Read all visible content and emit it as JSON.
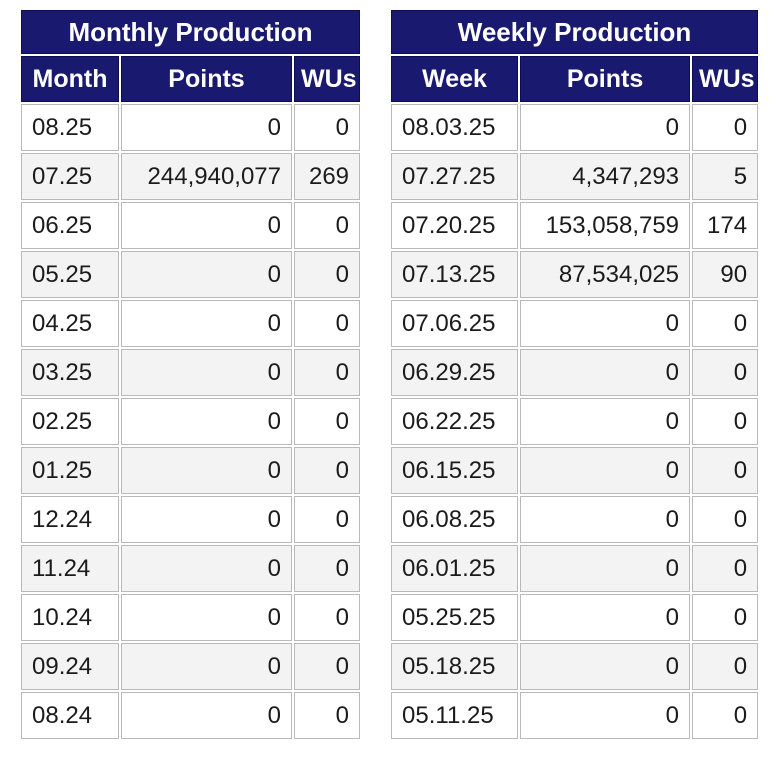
{
  "colors": {
    "page_bg": "#ffffff",
    "header_bg": "#191970",
    "header_border": "#0d0d52",
    "header_text": "#ffffff",
    "cell_border": "#b9b9b9",
    "row_odd_bg": "#ffffff",
    "row_even_bg": "#f3f3f3",
    "text": "#1b1b1b"
  },
  "monthly_table": {
    "title": "Monthly Production",
    "columns": [
      "Month",
      "Points",
      "WUs"
    ],
    "rows": [
      [
        "08.25",
        "0",
        "0"
      ],
      [
        "07.25",
        "244,940,077",
        "269"
      ],
      [
        "06.25",
        "0",
        "0"
      ],
      [
        "05.25",
        "0",
        "0"
      ],
      [
        "04.25",
        "0",
        "0"
      ],
      [
        "03.25",
        "0",
        "0"
      ],
      [
        "02.25",
        "0",
        "0"
      ],
      [
        "01.25",
        "0",
        "0"
      ],
      [
        "12.24",
        "0",
        "0"
      ],
      [
        "11.24",
        "0",
        "0"
      ],
      [
        "10.24",
        "0",
        "0"
      ],
      [
        "09.24",
        "0",
        "0"
      ],
      [
        "08.24",
        "0",
        "0"
      ]
    ]
  },
  "weekly_table": {
    "title": "Weekly Production",
    "columns": [
      "Week",
      "Points",
      "WUs"
    ],
    "rows": [
      [
        "08.03.25",
        "0",
        "0"
      ],
      [
        "07.27.25",
        "4,347,293",
        "5"
      ],
      [
        "07.20.25",
        "153,058,759",
        "174"
      ],
      [
        "07.13.25",
        "87,534,025",
        "90"
      ],
      [
        "07.06.25",
        "0",
        "0"
      ],
      [
        "06.29.25",
        "0",
        "0"
      ],
      [
        "06.22.25",
        "0",
        "0"
      ],
      [
        "06.15.25",
        "0",
        "0"
      ],
      [
        "06.08.25",
        "0",
        "0"
      ],
      [
        "06.01.25",
        "0",
        "0"
      ],
      [
        "05.25.25",
        "0",
        "0"
      ],
      [
        "05.18.25",
        "0",
        "0"
      ],
      [
        "05.11.25",
        "0",
        "0"
      ]
    ]
  },
  "chart_data": [
    {
      "type": "table",
      "title": "Monthly Production",
      "columns": [
        "Month",
        "Points",
        "WUs"
      ],
      "rows": [
        [
          "08.25",
          0,
          0
        ],
        [
          "07.25",
          244940077,
          269
        ],
        [
          "06.25",
          0,
          0
        ],
        [
          "05.25",
          0,
          0
        ],
        [
          "04.25",
          0,
          0
        ],
        [
          "03.25",
          0,
          0
        ],
        [
          "02.25",
          0,
          0
        ],
        [
          "01.25",
          0,
          0
        ],
        [
          "12.24",
          0,
          0
        ],
        [
          "11.24",
          0,
          0
        ],
        [
          "10.24",
          0,
          0
        ],
        [
          "09.24",
          0,
          0
        ],
        [
          "08.24",
          0,
          0
        ]
      ]
    },
    {
      "type": "table",
      "title": "Weekly Production",
      "columns": [
        "Week",
        "Points",
        "WUs"
      ],
      "rows": [
        [
          "08.03.25",
          0,
          0
        ],
        [
          "07.27.25",
          4347293,
          5
        ],
        [
          "07.20.25",
          153058759,
          174
        ],
        [
          "07.13.25",
          87534025,
          90
        ],
        [
          "07.06.25",
          0,
          0
        ],
        [
          "06.29.25",
          0,
          0
        ],
        [
          "06.22.25",
          0,
          0
        ],
        [
          "06.15.25",
          0,
          0
        ],
        [
          "06.08.25",
          0,
          0
        ],
        [
          "06.01.25",
          0,
          0
        ],
        [
          "05.25.25",
          0,
          0
        ],
        [
          "05.18.25",
          0,
          0
        ],
        [
          "05.11.25",
          0,
          0
        ]
      ]
    }
  ]
}
